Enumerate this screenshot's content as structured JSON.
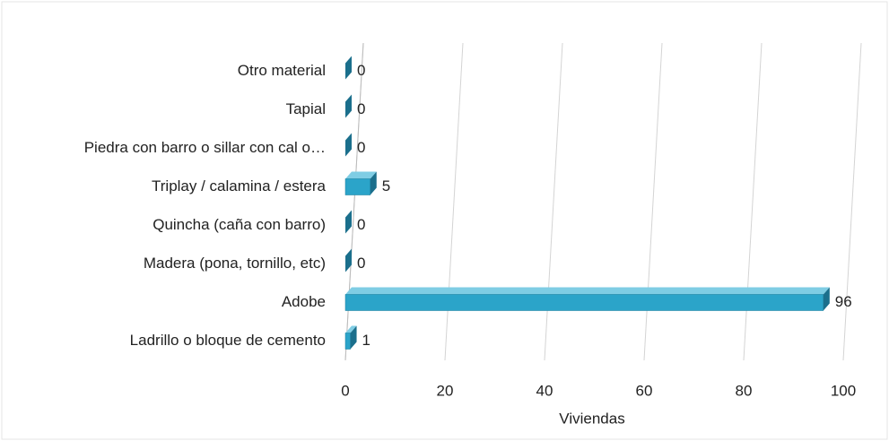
{
  "chart_data": {
    "type": "bar",
    "orientation": "horizontal",
    "categories": [
      "Otro material",
      "Tapial",
      "Piedra con barro o sillar con cal o…",
      "Triplay / calamina / estera",
      "Quincha (caña con barro)",
      "Madera (pona, tornillo, etc)",
      "Adobe",
      "Ladrillo o bloque de cemento"
    ],
    "values": [
      0,
      0,
      0,
      5,
      0,
      0,
      96,
      1
    ],
    "color": "#2ba4c9",
    "xlabel": "Viviendas",
    "xlim": [
      0,
      100
    ],
    "xticks": [
      0,
      20,
      40,
      60,
      80,
      100
    ],
    "grid": true
  }
}
